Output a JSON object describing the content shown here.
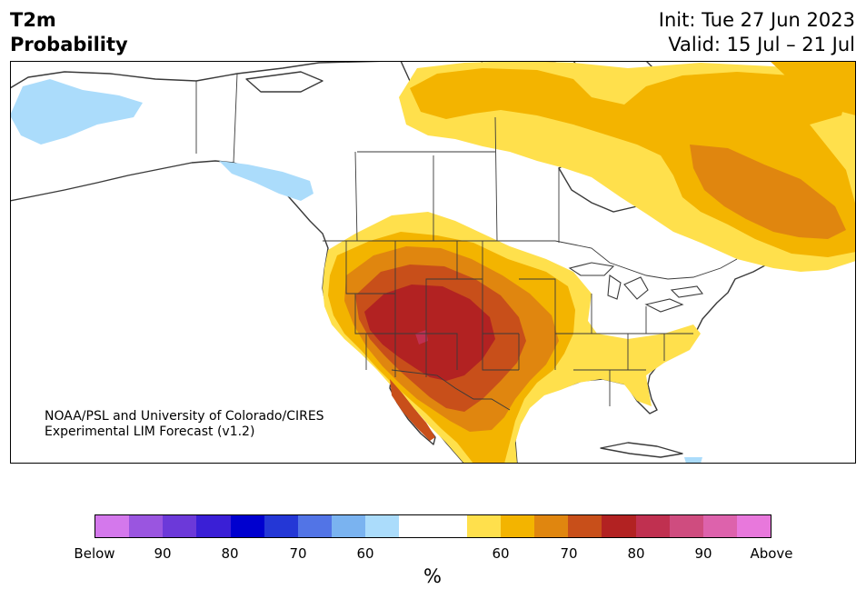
{
  "title": {
    "left_line1": "T2m",
    "left_line2": "Probability",
    "right_line1": "Init: Tue 27 Jun 2023",
    "right_line2": "Valid: 15 Jul – 21 Jul"
  },
  "credit": {
    "line1": "NOAA/PSL and University of Colorado/CIRES",
    "line2": "Experimental LIM Forecast (v1.2)"
  },
  "colorbar": {
    "colors": [
      "#d478ec",
      "#9a55e0",
      "#6c39d9",
      "#3a1fd6",
      "#0000cf",
      "#2437d6",
      "#5274e6",
      "#7ab3f0",
      "#abdcfb",
      "#ffffff",
      "#ffffff",
      "#ffe04c",
      "#f3b400",
      "#e0860f",
      "#c84f1a",
      "#b22222",
      "#c03050",
      "#cf4c7f",
      "#dd62ac",
      "#e878dc"
    ],
    "ticks": [
      "Below",
      "90",
      "80",
      "70",
      "60",
      "60",
      "70",
      "80",
      "90",
      "Above"
    ],
    "unit": "%"
  },
  "map_colors": {
    "above_60": "#ffe04c",
    "above_65": "#f3b400",
    "above_70": "#e0860f",
    "above_75": "#c84f1a",
    "above_80": "#b22222",
    "above_85": "#c03050",
    "below_60": "#abdcfb"
  }
}
